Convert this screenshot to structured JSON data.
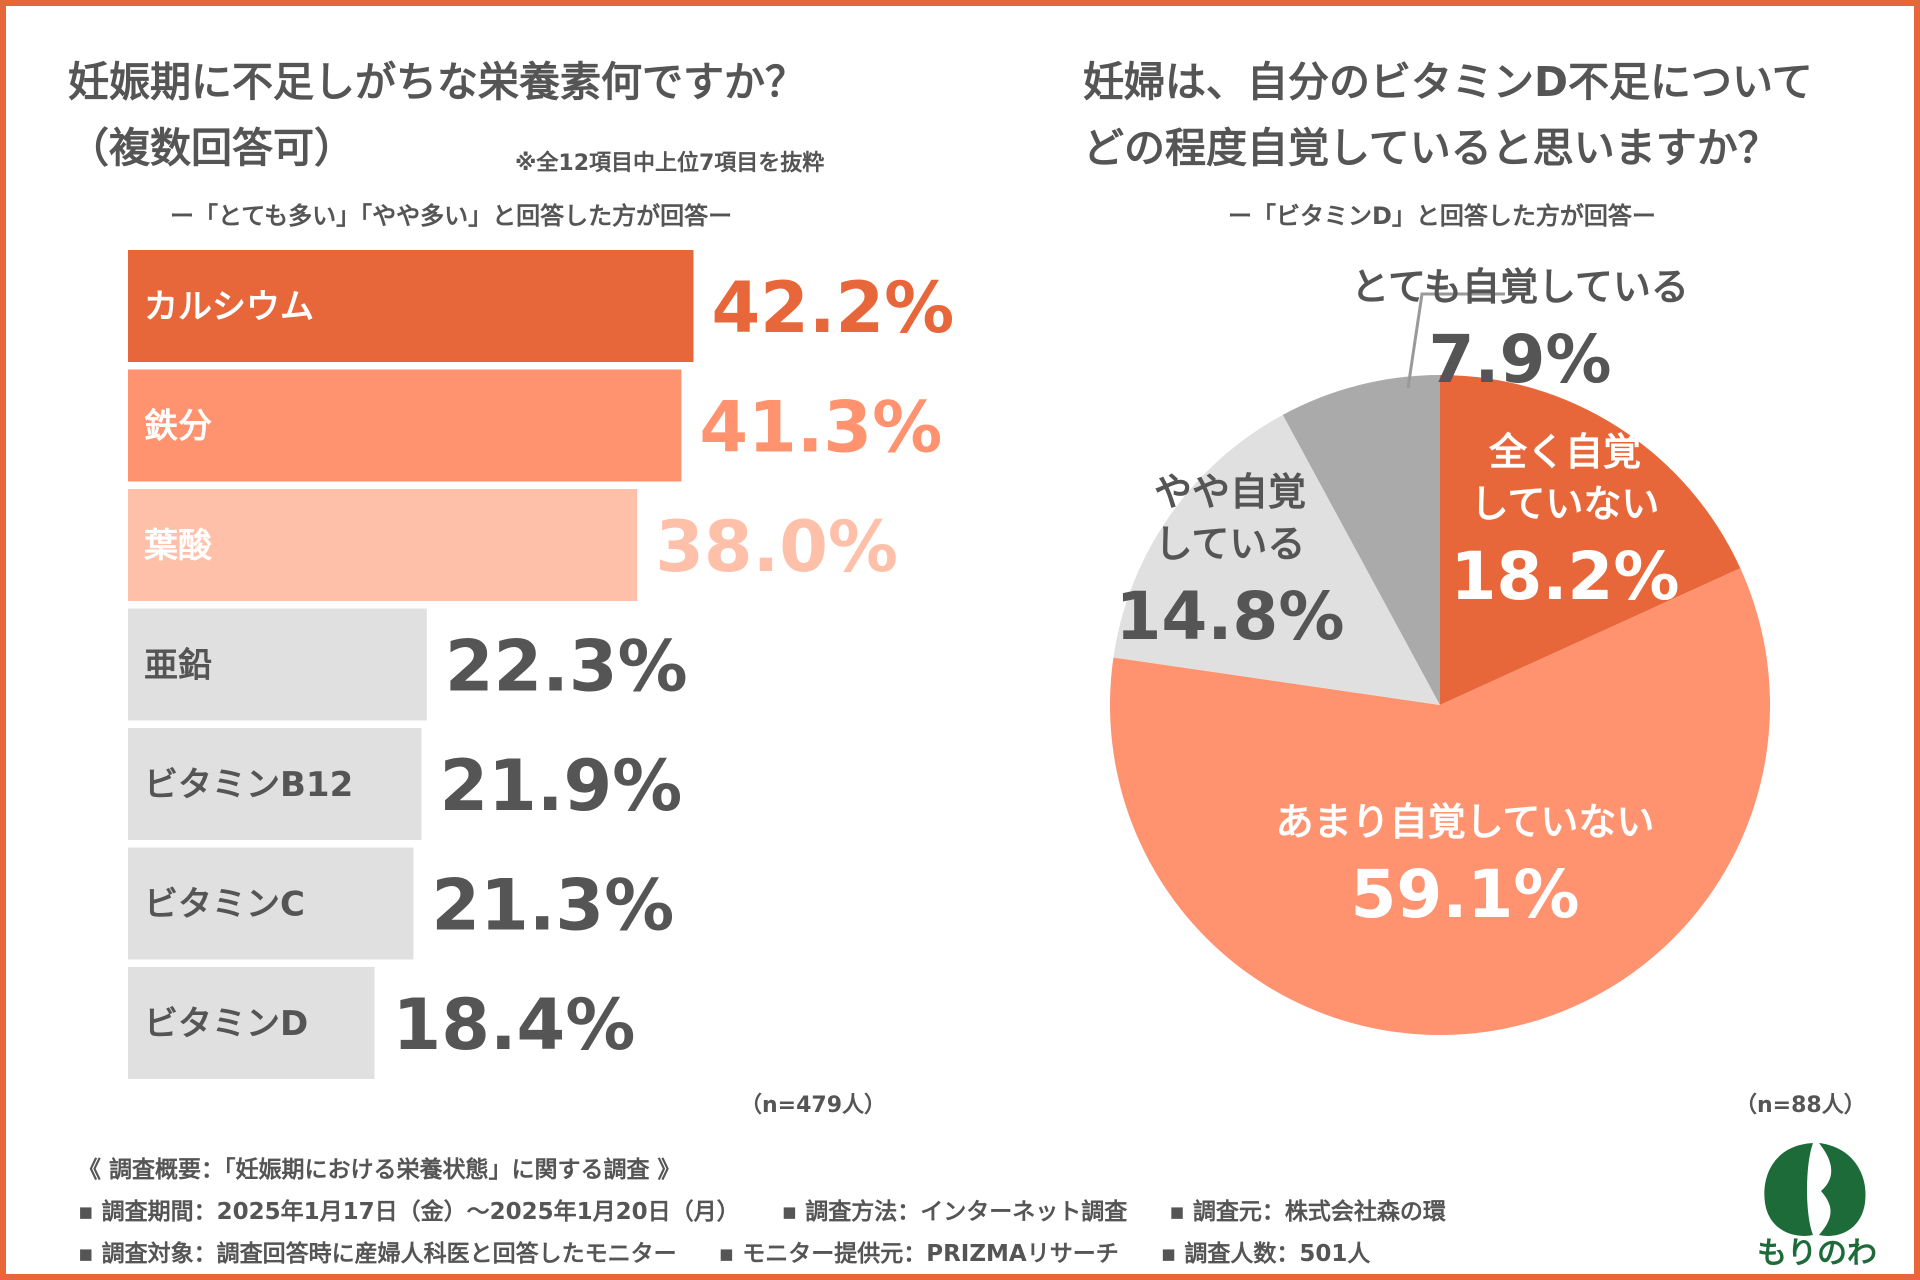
{
  "colors": {
    "accent": "#E8673A",
    "mid": "#FF9370",
    "light": "#FFC0AA",
    "gray_bar": "#E0E0E0",
    "gray_pie": "#AAAAAA",
    "light_gray_pie": "#E0E0E0",
    "text_gray": "#555555",
    "logo_green": "#1E6B3A"
  },
  "left": {
    "title_line1": "妊娠期に不足しがちな栄養素何ですか？",
    "title_line2": "（複数回答可）",
    "note": "※全12項目中上位7項目を抜粋",
    "subtitle": "ー「とても多い」「やや多い」と回答した方が回答ー",
    "n_label": "（n=479人）"
  },
  "right": {
    "title_line1": "妊婦は、自分のビタミンD不足について",
    "title_line2": "どの程度自覚していると思いますか？",
    "subtitle": "ー「ビタミンD」と回答した方が回答ー",
    "n_label": "（n=88人）"
  },
  "chart_data": [
    {
      "type": "bar",
      "orientation": "horizontal",
      "title": "妊娠期に不足しがちな栄養素何ですか？（複数回答可）",
      "categories": [
        "カルシウム",
        "鉄分",
        "葉酸",
        "亜鉛",
        "ビタミンB12",
        "ビタミンC",
        "ビタミンD"
      ],
      "values": [
        42.2,
        41.3,
        38.0,
        22.3,
        21.9,
        21.3,
        18.4
      ],
      "labels": [
        "42.2%",
        "41.3%",
        "38.0%",
        "22.3%",
        "21.9%",
        "21.3%",
        "18.4%"
      ],
      "unit": "%"
    },
    {
      "type": "pie",
      "title": "妊婦は、自分のビタミンD不足についてどの程度自覚していると思いますか？",
      "slices": [
        {
          "label_lines": [
            "全く自覚",
            "していない"
          ],
          "value": 18.2,
          "value_label": "18.2%"
        },
        {
          "label_lines": [
            "あまり自覚していない"
          ],
          "value": 59.1,
          "value_label": "59.1%"
        },
        {
          "label_lines": [
            "やや自覚",
            "している"
          ],
          "value": 14.8,
          "value_label": "14.8%"
        },
        {
          "label_lines": [
            "とても自覚している"
          ],
          "value": 7.9,
          "value_label": "7.9%"
        }
      ]
    }
  ],
  "footer": {
    "heading": "《 調査概要：「妊娠期における栄養状態」に関する調査 》",
    "row1": [
      "▪ 調査期間：2025年1月17日（金）～2025年1月20日（月）",
      "▪ 調査方法：インターネット調査",
      "▪ 調査元：株式会社森の環"
    ],
    "row2": [
      "▪ 調査対象：調査回答時に産婦人科医と回答したモニター",
      "▪ モニター提供元：PRIZMAリサーチ",
      "▪ 調査人数：501人"
    ]
  },
  "logo": {
    "text": "もりのわ",
    "icon": "leaf-logo-icon"
  }
}
